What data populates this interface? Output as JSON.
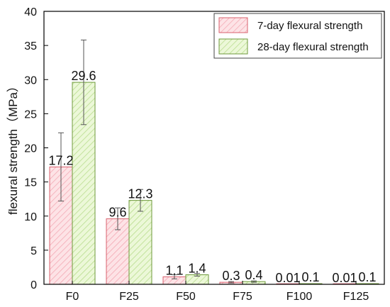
{
  "chart_data": {
    "type": "bar",
    "title": "",
    "xlabel": "",
    "ylabel": "flexural strength（MPa）",
    "ylim": [
      0,
      40
    ],
    "yticks": [
      0,
      5,
      10,
      15,
      20,
      25,
      30,
      35,
      40
    ],
    "grid": false,
    "legend_position": "top-right",
    "categories": [
      "F0",
      "F25",
      "F50",
      "F75",
      "F100",
      "F125"
    ],
    "series": [
      {
        "name": "7-day flexural strength",
        "values": [
          17.2,
          9.6,
          1.1,
          0.3,
          0.01,
          0.01
        ],
        "labels": [
          "17.2",
          "9.6",
          "1.1",
          "0.3",
          "0.01",
          "0.01"
        ],
        "error": [
          5.0,
          1.6,
          0.3,
          0.1,
          0.0,
          0.0
        ],
        "color": "#fde3e6",
        "hatch_color": "#f4a9b4",
        "stroke": "#d9606e"
      },
      {
        "name": "28-day flexural strength",
        "values": [
          29.6,
          12.3,
          1.4,
          0.4,
          0.1,
          0.1
        ],
        "labels": [
          "29.6",
          "12.3",
          "1.4",
          "0.4",
          "0.1",
          "0.1"
        ],
        "error": [
          6.2,
          1.6,
          0.2,
          0.1,
          0.0,
          0.0
        ],
        "color": "#ecf8d8",
        "hatch_color": "#b9dd8e",
        "stroke": "#6f9a3c"
      }
    ]
  }
}
